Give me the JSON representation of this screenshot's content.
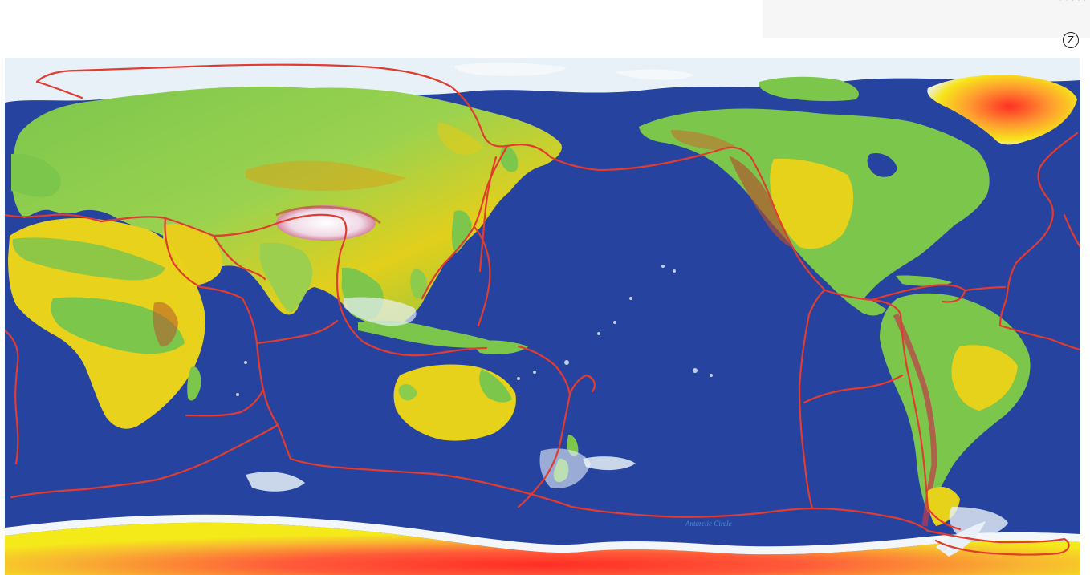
{
  "map": {
    "projection": "Pacific-centered world map",
    "colors": {
      "ocean": "#2743a0",
      "shelf": "#e8f1f8",
      "lowland": "#79c24a",
      "upland": "#ecd11a",
      "highland": "#d7a112",
      "mountain": "#b64b2b",
      "ice_cap": "#ff3a2a",
      "plate_boundary": "#e23b2f"
    },
    "corner_marker": "Z",
    "corner_text": "· · · · ·",
    "label_antarctic_circle": "Antarctic Circle"
  }
}
